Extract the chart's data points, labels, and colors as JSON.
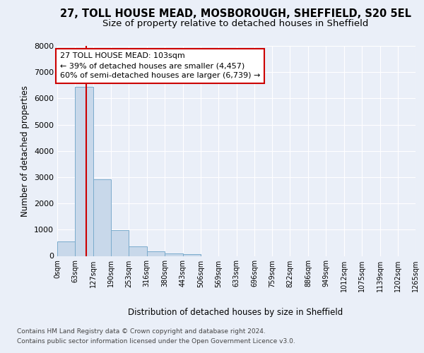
{
  "title_line1": "27, TOLL HOUSE MEAD, MOSBOROUGH, SHEFFIELD, S20 5EL",
  "title_line2": "Size of property relative to detached houses in Sheffield",
  "xlabel": "Distribution of detached houses by size in Sheffield",
  "ylabel": "Number of detached properties",
  "footnote1": "Contains HM Land Registry data © Crown copyright and database right 2024.",
  "footnote2": "Contains public sector information licensed under the Open Government Licence v3.0.",
  "bins": [
    0,
    63,
    127,
    190,
    253,
    316,
    380,
    443,
    506,
    569,
    633,
    696,
    759,
    822,
    886,
    949,
    1012,
    1075,
    1139,
    1202,
    1265
  ],
  "bin_labels": [
    "0sqm",
    "63sqm",
    "127sqm",
    "190sqm",
    "253sqm",
    "316sqm",
    "380sqm",
    "443sqm",
    "506sqm",
    "569sqm",
    "633sqm",
    "696sqm",
    "759sqm",
    "822sqm",
    "886sqm",
    "949sqm",
    "1012sqm",
    "1075sqm",
    "1139sqm",
    "1202sqm",
    "1265sqm"
  ],
  "bar_heights": [
    550,
    6430,
    2930,
    970,
    350,
    165,
    100,
    70,
    0,
    0,
    0,
    0,
    0,
    0,
    0,
    0,
    0,
    0,
    0,
    0
  ],
  "bar_color": "#c8d8ea",
  "bar_edge_color": "#7aabcc",
  "bar_edge_width": 0.7,
  "property_size_sqm": 103,
  "red_line_color": "#cc0000",
  "annotation_line1": "27 TOLL HOUSE MEAD: 103sqm",
  "annotation_line2": "← 39% of detached houses are smaller (4,457)",
  "annotation_line3": "60% of semi-detached houses are larger (6,739) →",
  "annotation_box_color": "#ffffff",
  "annotation_box_edge_color": "#cc0000",
  "ylim": [
    0,
    8000
  ],
  "yticks": [
    0,
    1000,
    2000,
    3000,
    4000,
    5000,
    6000,
    7000,
    8000
  ],
  "bg_color": "#eaeff8",
  "plot_bg_color": "#eaeff8",
  "grid_color": "#ffffff",
  "title_fontsize": 10.5,
  "subtitle_fontsize": 9.5
}
